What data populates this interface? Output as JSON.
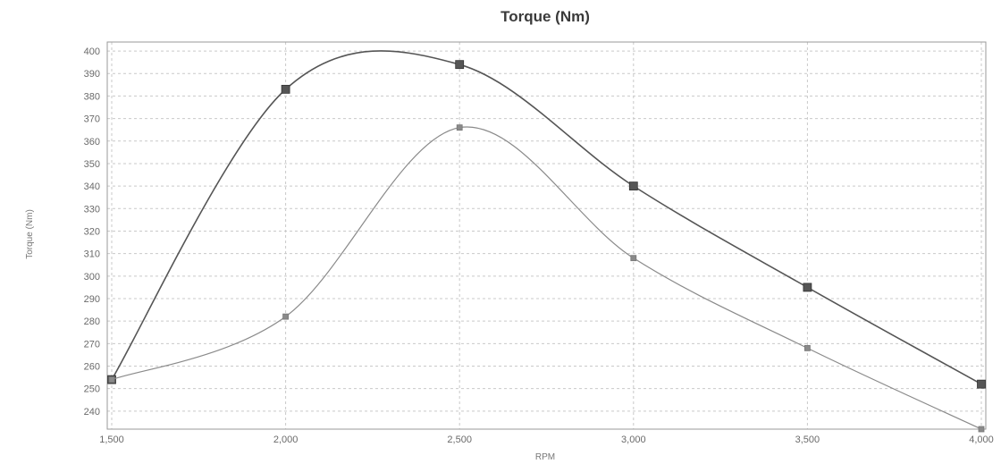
{
  "chart_data": {
    "type": "line",
    "title": "Torque (Nm)",
    "xlabel": "RPM",
    "ylabel": "Torque (Nm)",
    "x": [
      1500,
      2000,
      2500,
      3000,
      3500,
      4000
    ],
    "x_tick_labels": [
      "1,500",
      "2,000",
      "2,500",
      "3,000",
      "3,500",
      "4,000"
    ],
    "y_ticks": [
      240,
      250,
      260,
      270,
      280,
      290,
      300,
      310,
      320,
      330,
      340,
      350,
      360,
      370,
      380,
      390,
      400
    ],
    "xlim": [
      1500,
      4000
    ],
    "ylim": [
      232,
      404
    ],
    "grid": true,
    "legend": "none",
    "series": [
      {
        "values": [
          254,
          383,
          394,
          340,
          295,
          252
        ],
        "color": "#555555",
        "marker": "square"
      },
      {
        "values": [
          254,
          282,
          366,
          308,
          268,
          232
        ],
        "color": "#8a8a8a",
        "marker": "small-square"
      }
    ]
  }
}
